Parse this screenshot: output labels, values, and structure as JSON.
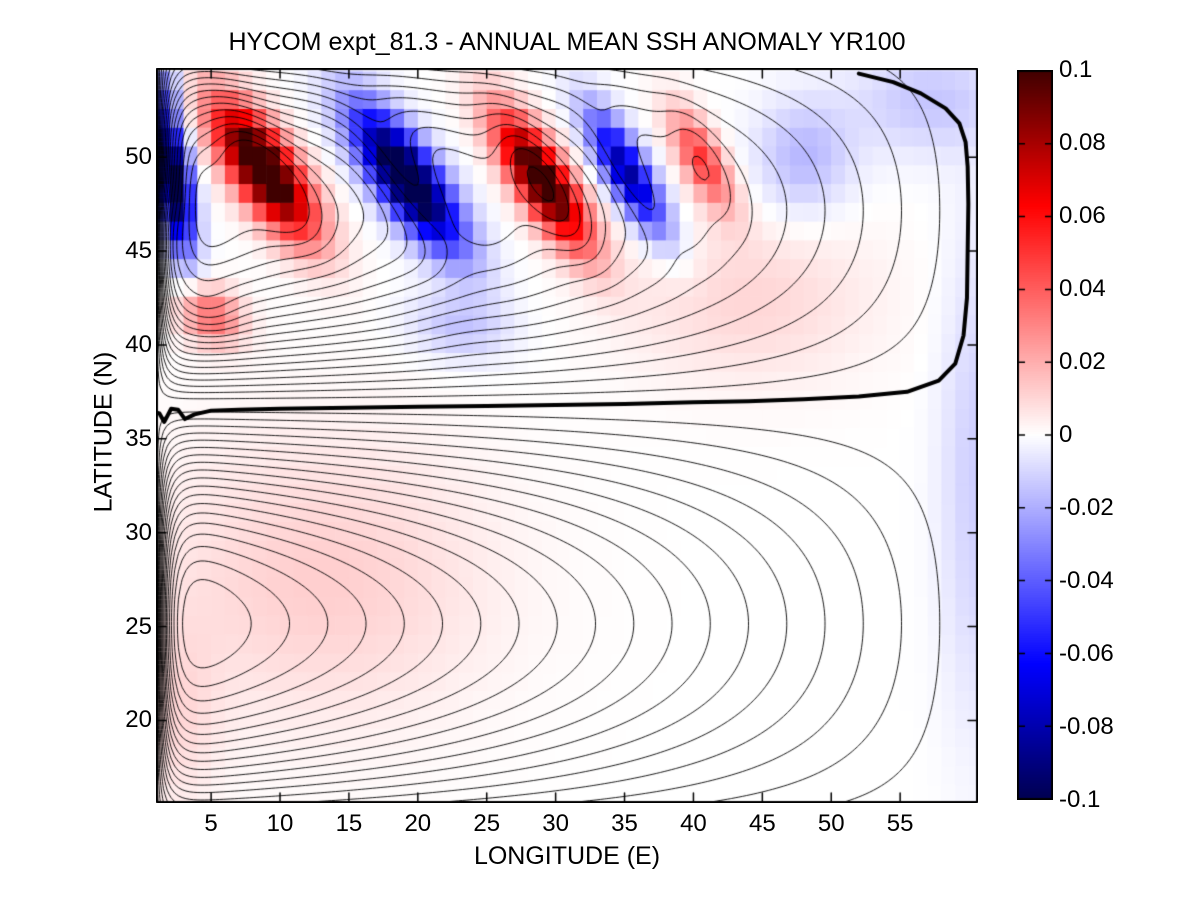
{
  "title": "HYCOM expt_81.3 - ANNUAL MEAN SSH ANOMALY YR100",
  "chart_data": {
    "type": "heatmap",
    "subtype": "pcolor anomaly field with overlaid mean-SSH contour lines (double-gyre)",
    "title": "HYCOM expt_81.3 - ANNUAL MEAN SSH ANOMALY YR100",
    "xlabel": "LONGITUDE (E)",
    "ylabel": "LATITUDE (N)",
    "x_range": [
      1,
      60.65
    ],
    "y_range": [
      15.6,
      54.75
    ],
    "xticks": [
      5,
      10,
      15,
      20,
      25,
      30,
      35,
      40,
      45,
      50,
      55
    ],
    "yticks": [
      20,
      25,
      30,
      35,
      40,
      45,
      50
    ],
    "grid_cell_deg": 1,
    "colorbar": {
      "min": -0.1,
      "max": 0.1,
      "ticks": [
        0.1,
        0.08,
        0.06,
        0.04,
        0.02,
        0,
        -0.02,
        -0.04,
        -0.06,
        -0.08,
        -0.1
      ],
      "tick_labels": [
        "0.1",
        "0.08",
        "0.06",
        "0.04",
        "0.02",
        "0",
        "-0.02",
        "-0.04",
        "-0.06",
        "-0.08",
        "-0.1"
      ],
      "colors": {
        "positive_extreme": "#400000",
        "positive_full": "#ff0000",
        "zero": "#ffffff",
        "negative_full": "#0000ff",
        "negative_extreme": "#000050"
      },
      "full_hue_at_abs_value": 0.063
    },
    "anomaly_blobs": [
      {
        "amp": -0.115,
        "lon": 2.2,
        "lat": 48.8,
        "sx": 1.3,
        "sy": 3.6,
        "tilt": 0.2,
        "band": true
      },
      {
        "amp": 0.125,
        "lon": 8.8,
        "lat": 49.4,
        "sx": 2.5,
        "sy": 3.5,
        "tilt": 0.75,
        "band": true
      },
      {
        "amp": -0.125,
        "lon": 19.2,
        "lat": 48.9,
        "sx": 2.5,
        "sy": 3.7,
        "tilt": 0.8,
        "band": true
      },
      {
        "amp": 0.115,
        "lon": 29.0,
        "lat": 48.8,
        "sx": 2.1,
        "sy": 3.5,
        "tilt": 0.75,
        "band": true
      },
      {
        "amp": -0.085,
        "lon": 35.2,
        "lat": 49.2,
        "sx": 1.7,
        "sy": 3.2,
        "tilt": 0.7,
        "band": true
      },
      {
        "amp": 0.05,
        "lon": 40.6,
        "lat": 49.9,
        "sx": 1.6,
        "sy": 2.6,
        "tilt": 0.6,
        "band": true
      },
      {
        "amp": 0.038,
        "lon": 5.0,
        "lat": 41.6,
        "sx": 2.2,
        "sy": 1.5,
        "tilt": 0.3,
        "band": true
      },
      {
        "amp": -0.022,
        "lon": 1.6,
        "lat": 53.6,
        "sx": 1.4,
        "sy": 1.4,
        "tilt": 0.0,
        "band": true
      },
      {
        "amp": -0.015,
        "lon": 23.0,
        "lat": 41.0,
        "sx": 3.5,
        "sy": 1.8,
        "tilt": 0.3,
        "band": true
      },
      {
        "amp": 0.012,
        "lon": 13.0,
        "lat": 27.5,
        "sx": 12.0,
        "sy": 7.5,
        "tilt": 0.0,
        "band": false
      },
      {
        "amp": 0.01,
        "lon": 44.0,
        "lat": 42.5,
        "sx": 9.0,
        "sy": 4.5,
        "tilt": 0.0,
        "band": false
      },
      {
        "amp": -0.012,
        "lon": 60.5,
        "lat": 33.0,
        "sx": 2.6,
        "sy": 13.0,
        "tilt": 0.0,
        "band": false
      },
      {
        "amp": -0.014,
        "lon": 57.0,
        "lat": 53.0,
        "sx": 5.5,
        "sy": 2.8,
        "tilt": 0.0,
        "band": false
      },
      {
        "amp": -0.018,
        "lon": 48.0,
        "lat": 50.0,
        "sx": 3.5,
        "sy": 3.0,
        "tilt": 0.0,
        "band": false
      },
      {
        "amp": 0.008,
        "lon": 2.5,
        "lat": 20.0,
        "sx": 3.0,
        "sy": 5.0,
        "tilt": 0.0,
        "band": false
      }
    ],
    "mean_contours": {
      "model": "stommel-double-gyre",
      "west_intensification_epsilon": 0.013,
      "gyre_boundary_lat": 36.8,
      "north_extent_lat": 57.5,
      "south_extent_lat": 13.5,
      "level_step": 0.05,
      "level_max": 0.95,
      "anomaly_coupling": 1.4,
      "north_gyre_center": {
        "lon": 4.5,
        "lat": 46.5
      },
      "south_gyre_center": {
        "lon": 4.5,
        "lat": 25.5
      }
    },
    "zero_contour_lon_lat": [
      [
        52.0,
        54.45
      ],
      [
        54.5,
        54.0
      ],
      [
        56.5,
        53.4
      ],
      [
        58.3,
        52.6
      ],
      [
        59.3,
        51.8
      ],
      [
        59.75,
        50.8
      ],
      [
        59.9,
        49.5
      ],
      [
        59.95,
        47.5
      ],
      [
        59.9,
        45.0
      ],
      [
        59.85,
        42.5
      ],
      [
        59.6,
        40.5
      ],
      [
        59.0,
        39.0
      ],
      [
        57.8,
        38.1
      ],
      [
        55.5,
        37.5
      ],
      [
        52.0,
        37.25
      ],
      [
        48.0,
        37.1
      ],
      [
        44.0,
        37.0
      ],
      [
        40.0,
        36.95
      ],
      [
        35.0,
        36.85
      ],
      [
        30.0,
        36.8
      ],
      [
        25.0,
        36.75
      ],
      [
        20.0,
        36.7
      ],
      [
        15.0,
        36.65
      ],
      [
        10.0,
        36.6
      ],
      [
        7.0,
        36.55
      ],
      [
        5.0,
        36.5
      ],
      [
        3.8,
        36.3
      ],
      [
        3.1,
        36.05
      ],
      [
        2.6,
        36.55
      ],
      [
        2.1,
        36.6
      ],
      [
        1.6,
        35.9
      ],
      [
        1.25,
        36.35
      ],
      [
        1.0,
        36.4
      ]
    ],
    "colors": {
      "contour_line": "#000000",
      "thick_contour_line": "#000000",
      "axes_box": "#000000",
      "background": "#ffffff"
    }
  }
}
